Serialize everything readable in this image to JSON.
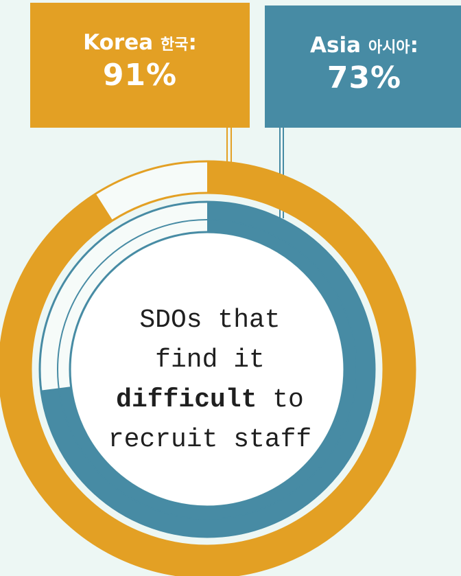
{
  "labels": {
    "korea_name": "Korea",
    "korea_kr": "한국",
    "korea_value": "91%",
    "asia_name": "Asia",
    "asia_kr": "아시아",
    "asia_value": "73%"
  },
  "center": {
    "line1": "SDOs that",
    "line2": "find it",
    "line3_bold": "difficult",
    "line3_rest": " to",
    "line4": "recruit staff"
  },
  "colors": {
    "korea": "#e3a024",
    "asia": "#478ba4",
    "background": "#edf7f4",
    "remainder": "#f6fbf9"
  },
  "chart_data": {
    "type": "pie",
    "series": [
      {
        "name": "Korea 한국",
        "value": 91,
        "unit": "%"
      },
      {
        "name": "Asia 아시아",
        "value": 73,
        "unit": "%"
      }
    ]
  }
}
